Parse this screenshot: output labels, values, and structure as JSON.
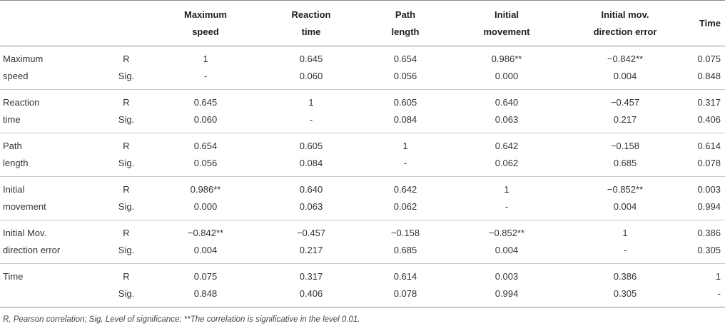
{
  "header": {
    "col_speed": "Maximum speed",
    "col_reaction": "Reaction time",
    "col_path": "Path length",
    "col_initial": "Initial movement",
    "col_error": "Initial mov. direction error",
    "col_time": "Time"
  },
  "rows": [
    {
      "name_line1": "Maximum",
      "name_line2": "speed",
      "r_label": "R",
      "s_label": "Sig.",
      "r": [
        "1",
        "0.645",
        "0.654",
        "0.986**",
        "−0.842**",
        "0.075"
      ],
      "s": [
        "-",
        "0.060",
        "0.056",
        "0.000",
        "0.004",
        "0.848"
      ]
    },
    {
      "name_line1": "Reaction",
      "name_line2": "time",
      "r_label": "R",
      "s_label": "Sig.",
      "r": [
        "0.645",
        "1",
        "0.605",
        "0.640",
        "−0.457",
        "0.317"
      ],
      "s": [
        "0.060",
        "-",
        "0.084",
        "0.063",
        "0.217",
        "0.406"
      ]
    },
    {
      "name_line1": "Path",
      "name_line2": "length",
      "r_label": "R",
      "s_label": "Sig.",
      "r": [
        "0.654",
        "0.605",
        "1",
        "0.642",
        "−0.158",
        "0.614"
      ],
      "s": [
        "0.056",
        "0.084",
        "-",
        "0.062",
        "0.685",
        "0.078"
      ]
    },
    {
      "name_line1": "Initial",
      "name_line2": "movement",
      "r_label": "R",
      "s_label": "Sig.",
      "r": [
        "0.986**",
        "0.640",
        "0.642",
        "1",
        "−0.852**",
        "0.003"
      ],
      "s": [
        "0.000",
        "0.063",
        "0.062",
        "-",
        "0.004",
        "0.994"
      ]
    },
    {
      "name_line1": "Initial Mov.",
      "name_line2": "direction error",
      "r_label": "R",
      "s_label": "Sig.",
      "r": [
        "−0.842**",
        "−0.457",
        "−0.158",
        "−0.852**",
        "1",
        "0.386"
      ],
      "s": [
        "0.004",
        "0.217",
        "0.685",
        "0.004",
        "-",
        "0.305"
      ]
    },
    {
      "name_line1": "Time",
      "name_line2": "",
      "r_label": "R",
      "s_label": "Sig.",
      "r": [
        "0.075",
        "0.317",
        "0.614",
        "0.003",
        "0.386",
        "1"
      ],
      "s": [
        "0.848",
        "0.406",
        "0.078",
        "0.994",
        "0.305",
        "-"
      ]
    }
  ],
  "footnote": "R, Pearson correlation; Sig, Level of significance; **The correlation is significative in the level 0.01."
}
